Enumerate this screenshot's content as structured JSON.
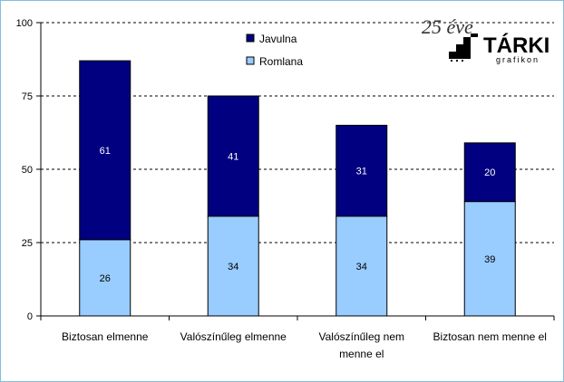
{
  "chart_data": {
    "type": "bar",
    "stacked": true,
    "categories": [
      [
        "Biztosan elmenne"
      ],
      [
        "Valószínűleg elmenne"
      ],
      [
        "Valószínűleg nem",
        "menne el"
      ],
      [
        "Biztosan nem menne el"
      ]
    ],
    "series": [
      {
        "name": "Romlana",
        "values": [
          26,
          34,
          34,
          39
        ],
        "color": "#99ccff"
      },
      {
        "name": "Javulna",
        "values": [
          61,
          41,
          31,
          20
        ],
        "color": "#000080"
      }
    ],
    "ylim": [
      0,
      100
    ],
    "yticks": [
      0,
      25,
      50,
      75,
      100
    ],
    "grid": true,
    "legend": "top-center",
    "title": "",
    "xlabel": "",
    "ylabel": ""
  },
  "logo": {
    "years": "25 éve",
    "name": "TÁRKI",
    "sub": "grafikon"
  }
}
